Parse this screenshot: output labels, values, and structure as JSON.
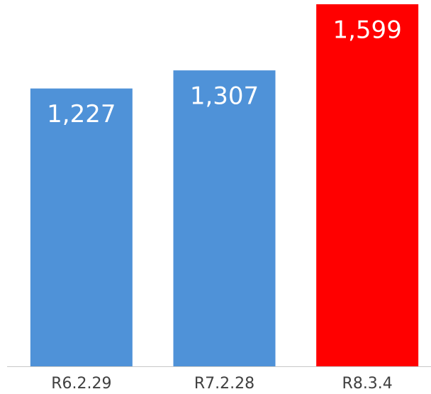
{
  "chart_data": {
    "type": "bar",
    "categories": [
      "R6.2.29",
      "R7.2.28",
      "R8.3.4"
    ],
    "values": [
      1227,
      1307,
      1599
    ],
    "value_labels": [
      "1,227",
      "1,307",
      "1,599"
    ],
    "colors": [
      "#4f92d8",
      "#4f92d8",
      "#ff0000"
    ]
  }
}
